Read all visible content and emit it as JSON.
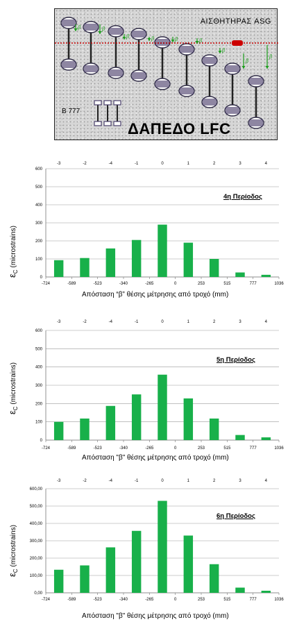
{
  "diagram": {
    "sensor_label": "ΑΙΣΘΗΤΗΡΑΣ ASG",
    "aircraft_label": "Β 777",
    "floor_label": "ΔΑΠΕΔΟ LFC",
    "beta_symbol": "β",
    "colors": {
      "background": "#d6d6d6",
      "sensor_line": "#cc0000",
      "arrows": "#1a9e1a",
      "wheels": "#4a3f6b"
    }
  },
  "chart_data": [
    {
      "type": "bar",
      "period_label": "4η Περίοδος",
      "top_axis_labels": [
        "-3",
        "-2",
        "-4",
        "-1",
        "0",
        "1",
        "2",
        "3",
        "4"
      ],
      "bottom_axis_labels": [
        "-724",
        "-589",
        "-523",
        "-340",
        "-265",
        "0",
        "253",
        "515",
        "777",
        "1036"
      ],
      "values": [
        93,
        105,
        158,
        205,
        290,
        190,
        100,
        25,
        12
      ],
      "ylim": [
        0,
        600
      ],
      "yticks": [
        "0",
        "100",
        "200",
        "300",
        "400",
        "500",
        "600"
      ],
      "ylabel": "ε",
      "ylabel_sub": "C",
      "ylabel_unit": "(microstrains)",
      "xlabel": "Απόσταση “β” θέσης μέτρησης από τροχό (mm)",
      "bar_color": "#18b04a"
    },
    {
      "type": "bar",
      "period_label": "5η Περίοδος",
      "top_axis_labels": [
        "-3",
        "-2",
        "-4",
        "-1",
        "0",
        "1",
        "2",
        "3",
        "4"
      ],
      "bottom_axis_labels": [
        "-724",
        "-589",
        "-523",
        "-340",
        "-265",
        "0",
        "253",
        "515",
        "777",
        "1036"
      ],
      "values": [
        100,
        118,
        187,
        250,
        358,
        228,
        118,
        28,
        15
      ],
      "ylim": [
        0,
        600
      ],
      "yticks": [
        "0",
        "100",
        "200",
        "300",
        "400",
        "500",
        "600"
      ],
      "ylabel": "ε",
      "ylabel_sub": "C",
      "ylabel_unit": "(microstrains)",
      "xlabel": "Απόσταση \"β\" θέσης μέτρησης από τροχό (mm)",
      "bar_color": "#18b04a"
    },
    {
      "type": "bar",
      "period_label": "6η Περίοδος",
      "top_axis_labels": [
        "-3",
        "-2",
        "-4",
        "-1",
        "0",
        "1",
        "2",
        "3",
        "4"
      ],
      "bottom_axis_labels": [
        "-724",
        "-589",
        "-523",
        "-340",
        "-265",
        "0",
        "253",
        "515",
        "777",
        "1036"
      ],
      "values": [
        133,
        158,
        262,
        357,
        530,
        330,
        165,
        30,
        12
      ],
      "ylim": [
        0,
        600
      ],
      "yticks": [
        "0,00",
        "100,00",
        "200,00",
        "300,00",
        "400,00",
        "500,00",
        "600,00"
      ],
      "ylabel": "ε",
      "ylabel_sub": "C",
      "ylabel_unit": "(microstrains)",
      "xlabel": "Απόσταση \"β\" θέσης μέτρησης από τροχό (mm)",
      "bar_color": "#18b04a"
    }
  ]
}
